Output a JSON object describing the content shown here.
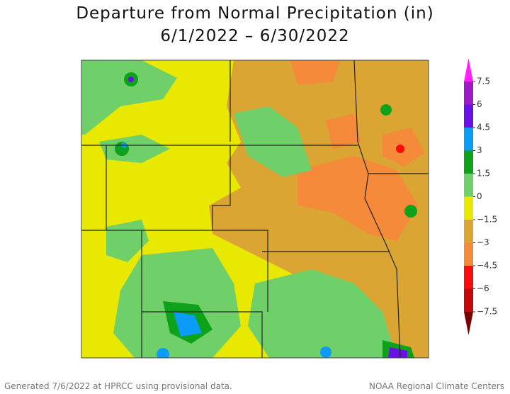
{
  "header": {
    "title": "Departure from Normal Precipitation (in)",
    "subtitle": "6/1/2022 – 6/30/2022"
  },
  "legend": {
    "labels": [
      "7.5",
      "6",
      "4.5",
      "3",
      "1.5",
      "0",
      "−1.5",
      "−3",
      "−4.5",
      "−6",
      "−7.5"
    ],
    "colors": [
      "#ff22ff",
      "#9c1cc8",
      "#6a10e8",
      "#0a9cf6",
      "#0ea21a",
      "#6fd06a",
      "#e8e800",
      "#daa533",
      "#f58a3a",
      "#fa0a0a",
      "#c80808",
      "#7a0000"
    ]
  },
  "footer": {
    "left": "Generated 7/6/2022 at HPRCC using provisional data.",
    "right": "NOAA Regional Climate Centers"
  }
}
